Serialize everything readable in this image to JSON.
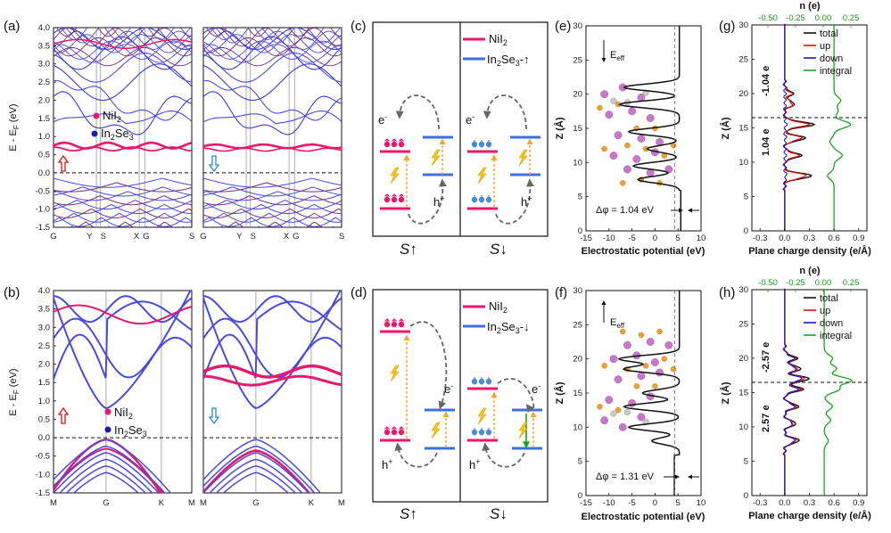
{
  "panel_labels": [
    "(a)",
    "(b)",
    "(c)",
    "(d)",
    "(e)",
    "(f)",
    "(g)",
    "(h)"
  ],
  "band": {
    "ylabel": "E - Eₓ (eV)",
    "ylabel_main": "E - E",
    "ylabel_sub": "F",
    "ylabel_unit": " (eV)",
    "yticks_top": [
      "4.0",
      "3.5",
      "3.0",
      "2.5",
      "2.0",
      "1.5",
      "1.0",
      "0.5",
      "0.0",
      "-0.5",
      "-1.0",
      "-1.5"
    ],
    "yticks_bottom": [
      "4.0",
      "3.5",
      "3.0",
      "2.5",
      "2.0",
      "1.5",
      "1.0",
      "0.5",
      "0.0",
      "-0.5",
      "-1.0",
      "-1.5"
    ],
    "kpath_top": [
      "G",
      "Y",
      "S",
      "X",
      "G",
      "S"
    ],
    "kpath_bottom": [
      "M",
      "G",
      "K",
      "M"
    ],
    "legend_a": [
      "NiI",
      "2",
      "In",
      "2",
      "Se",
      "3"
    ],
    "legend_b": [
      "NiI",
      "2",
      "In",
      "2",
      "Se",
      "3"
    ],
    "colors": {
      "nii2": "#e8186c",
      "in2se3": "#3f3fe0",
      "mixed": "#8a2a8a"
    }
  },
  "schematic": {
    "c": {
      "legend1": "NiI",
      "legend1_sub": "2",
      "legend2": "In",
      "legend2_sub": "2",
      "legend2_b": "Se",
      "legend2_sub2": "3",
      "legend2_arrow": "-↑",
      "e_label": "e",
      "h_label": "h",
      "left": "S↑",
      "right": "S↓"
    },
    "d": {
      "legend1": "NiI",
      "legend1_sub": "2",
      "legend2": "In",
      "legend2_sub": "2",
      "legend2_b": "Se",
      "legend2_sub2": "3",
      "legend2_arrow": "-↓",
      "e_label": "e",
      "h_label": "h",
      "left": "S↑",
      "right": "S↓"
    }
  },
  "potential": {
    "xlabel": "Electrostatic potential (eV)",
    "ylabel": "Z (Å)",
    "xticks": [
      "-15",
      "-10",
      "-5",
      "0",
      "5",
      "10"
    ],
    "yticks": [
      "30",
      "25",
      "20",
      "15",
      "10",
      "5",
      "0"
    ],
    "e_label": "Eeff",
    "e_main": "E",
    "e_sub": "eff",
    "dphi_e": "Δφ = 1.04 eV",
    "dphi_f": "Δφ = 1.31 eV"
  },
  "charge": {
    "xlabel": "Plane charge density (e/Å)",
    "ylabel": "Z (Å)",
    "xticks": [
      "-0.3",
      "0.0",
      "0.3",
      "0.6",
      "0.9"
    ],
    "yticks": [
      "30",
      "25",
      "20",
      "15",
      "10",
      "5",
      "0"
    ],
    "top_label": "n (e)",
    "top_ticks": [
      "-0.50",
      "-0.25",
      "0.00",
      "0.25"
    ],
    "legend": [
      "total",
      "up",
      "down",
      "integral"
    ],
    "legend_colors": [
      "#111111",
      "#e01010",
      "#1a1acc",
      "#1aa51a"
    ],
    "g_upper": "-1.04 e",
    "g_lower": "1.04 e",
    "h_upper": "-2.57 e",
    "h_lower": "2.57 e"
  },
  "chart_data": [
    {
      "type": "line",
      "title": "",
      "panel": "(a)",
      "xlabel": "",
      "ylabel": "E - EF (eV)",
      "ylim": [
        -1.5,
        4.0
      ],
      "x_ticks": [
        "G",
        "Y",
        "S",
        "X",
        "G",
        "S"
      ],
      "note": "band structure, spin up and spin down"
    },
    {
      "type": "line",
      "title": "",
      "panel": "(b)",
      "xlabel": "",
      "ylabel": "E - EF (eV)",
      "ylim": [
        -1.5,
        4.0
      ],
      "x_ticks": [
        "M",
        "G",
        "K",
        "M"
      ],
      "note": "band structure, spin up and spin down"
    },
    {
      "type": "line",
      "title": "",
      "panel": "(e)",
      "xlabel": "Electrostatic potential (eV)",
      "ylabel": "Z (Å)",
      "xlim": [
        -15,
        10
      ],
      "ylim": [
        0,
        30
      ],
      "annotation": "Δφ = 1.04 eV"
    },
    {
      "type": "line",
      "title": "",
      "panel": "(f)",
      "xlabel": "Electrostatic potential (eV)",
      "ylabel": "Z (Å)",
      "xlim": [
        -15,
        10
      ],
      "ylim": [
        0,
        30
      ],
      "annotation": "Δφ = 1.31 eV"
    },
    {
      "type": "line",
      "title": "",
      "panel": "(g)",
      "xlabel": "Plane charge density (e/Å)",
      "ylabel": "Z (Å)",
      "xlim": [
        -0.4,
        1.0
      ],
      "ylim": [
        0,
        30
      ],
      "series": [
        {
          "name": "total"
        },
        {
          "name": "up"
        },
        {
          "name": "down"
        },
        {
          "name": "integral"
        }
      ],
      "annotations": [
        "-1.04 e",
        "1.04 e"
      ]
    },
    {
      "type": "line",
      "title": "",
      "panel": "(h)",
      "xlabel": "Plane charge density (e/Å)",
      "ylabel": "Z (Å)",
      "xlim": [
        -0.4,
        1.0
      ],
      "ylim": [
        0,
        30
      ],
      "series": [
        {
          "name": "total"
        },
        {
          "name": "up"
        },
        {
          "name": "down"
        },
        {
          "name": "integral"
        }
      ],
      "annotations": [
        "-2.57 e",
        "2.57 e"
      ]
    }
  ]
}
